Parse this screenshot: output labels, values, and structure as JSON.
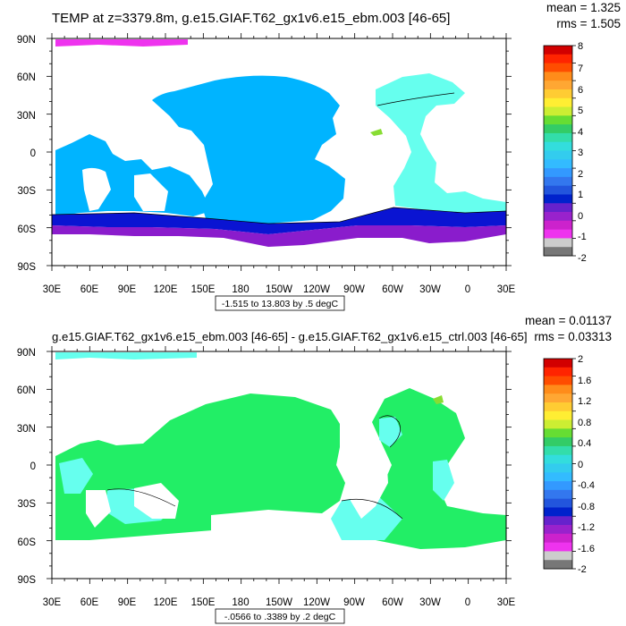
{
  "top_panel": {
    "title": "TEMP at z=3379.8m, g.e15.GIAF.T62_gx1v6.e15_ebm.003 [46-65]",
    "stats": {
      "mean": "mean = 1.325",
      "rms": "rms = 1.505"
    },
    "range_box": "-1.515 to 13.803 by .5 degC",
    "colorbar": {
      "labels": [
        "8",
        "7",
        "6",
        "5",
        "4",
        "3",
        "2",
        "1",
        "0",
        "-1",
        "-2"
      ],
      "colors": [
        "#d20000",
        "#ff2400",
        "#ff4d00",
        "#ff8c1a",
        "#ffa733",
        "#ffcc33",
        "#ffee33",
        "#ccee33",
        "#66dd33",
        "#33cc66",
        "#33ddaa",
        "#33dddd",
        "#33ccee",
        "#33bbff",
        "#3399ff",
        "#3377ee",
        "#2255dd",
        "#0022cc",
        "#6622cc",
        "#9922cc",
        "#cc22cc",
        "#ee33ee",
        "#cccccc",
        "#777777"
      ]
    }
  },
  "bottom_panel": {
    "title": "g.e15.GIAF.T62_gx1v6.e15_ebm.003 [46-65] - g.e15.GIAF.T62_gx1v6.e15_ctrl.003 [46-65]",
    "stats": {
      "mean": "mean = 0.01137",
      "rms": "rms = 0.03313"
    },
    "range_box": "-.0566 to .3389 by .2 degC",
    "colorbar": {
      "labels": [
        "2",
        "1.6",
        "1.2",
        "0.8",
        "0.4",
        "0",
        "-0.4",
        "-0.8",
        "-1.2",
        "-1.6",
        "-2"
      ],
      "colors": [
        "#d20000",
        "#ff2400",
        "#ff4d00",
        "#ff8c1a",
        "#ffa733",
        "#ffcc33",
        "#ffee33",
        "#ccee33",
        "#66dd33",
        "#33cc66",
        "#33ddaa",
        "#33dddd",
        "#33ccee",
        "#33bbff",
        "#3399ff",
        "#3377ee",
        "#2255dd",
        "#0022cc",
        "#6622cc",
        "#9922cc",
        "#cc22cc",
        "#ee33ee",
        "#cccccc",
        "#777777"
      ]
    }
  },
  "axes": {
    "lat_labels": [
      "90N",
      "60N",
      "30N",
      "0",
      "30S",
      "60S",
      "90S"
    ],
    "lon_labels": [
      "30E",
      "60E",
      "90E",
      "120E",
      "150E",
      "180",
      "150W",
      "120W",
      "90W",
      "60W",
      "30W",
      "0",
      "30E"
    ]
  },
  "palette": {
    "sky_blue": "#00b4ff",
    "deep_blue": "#0a14d2",
    "violet": "#8a1ccc",
    "magenta": "#cc22cc",
    "cyan": "#66ffee",
    "green": "#22ee66",
    "yellow_green": "#88dd33"
  }
}
